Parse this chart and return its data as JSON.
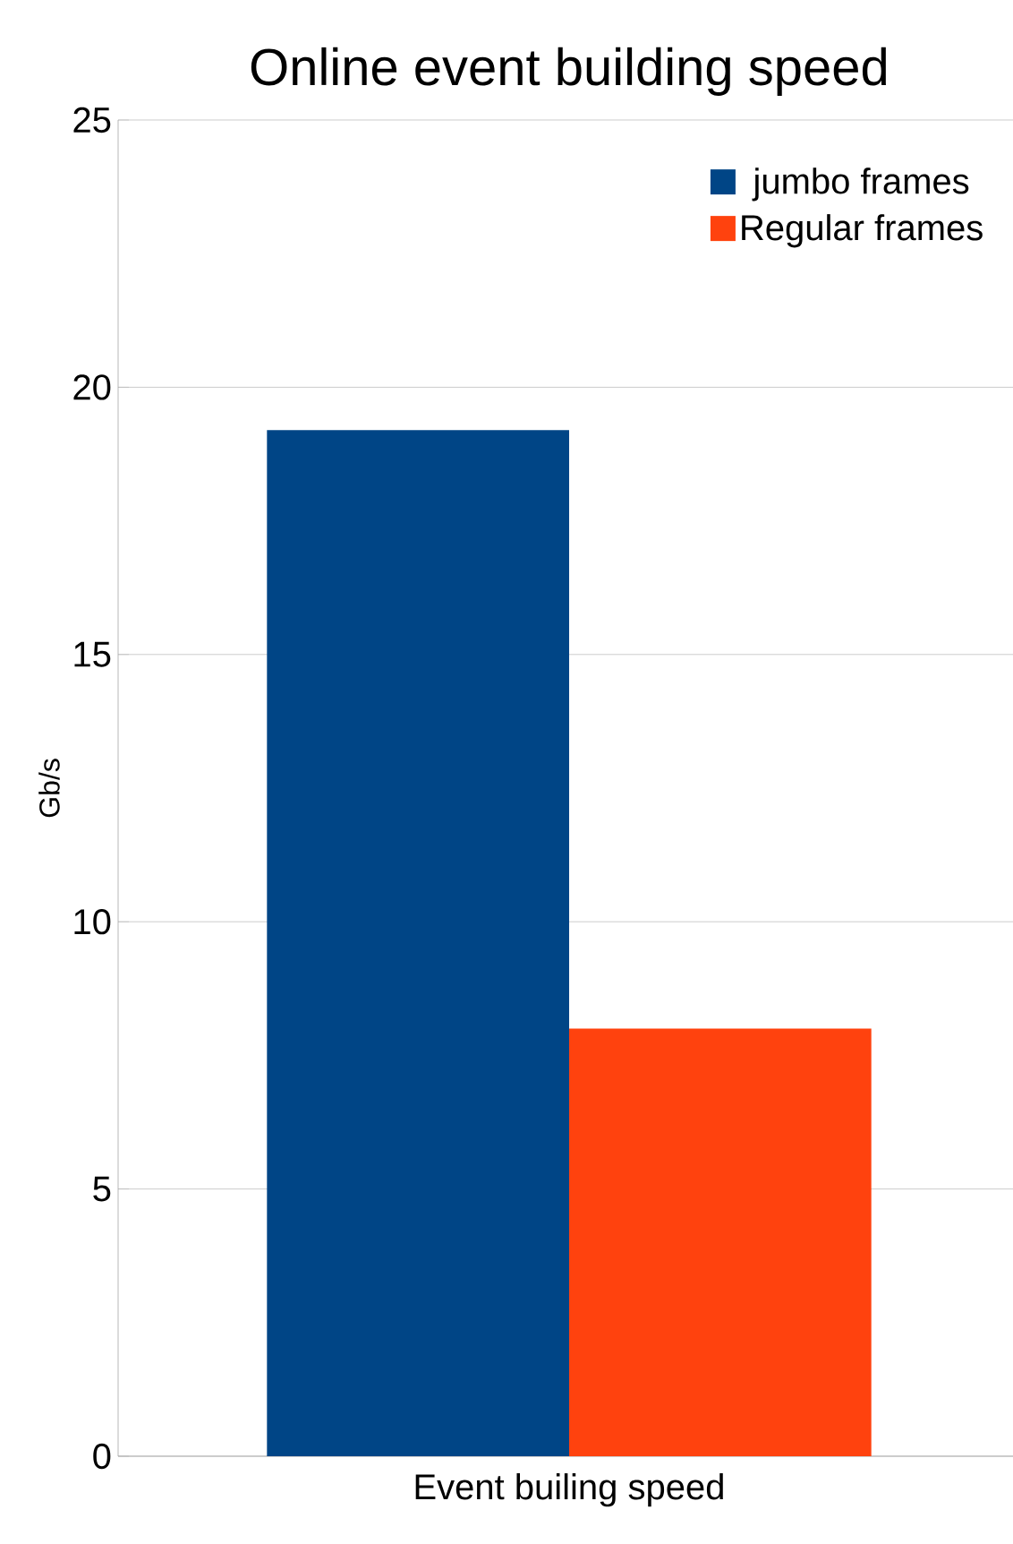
{
  "chart_data": {
    "type": "bar",
    "title": "Online event building speed",
    "ylabel": "Gb/s",
    "categories": [
      "Event builing speed"
    ],
    "series": [
      {
        "name": "jumbo frames",
        "color": "#004586",
        "values": [
          19.2
        ]
      },
      {
        "name": "Regular frames",
        "color": "#ff420e",
        "values": [
          8.0
        ]
      }
    ],
    "ylim": [
      0,
      25
    ],
    "yticks": [
      0,
      5,
      10,
      15,
      20,
      25
    ],
    "grid": "y",
    "legend": "top right"
  }
}
